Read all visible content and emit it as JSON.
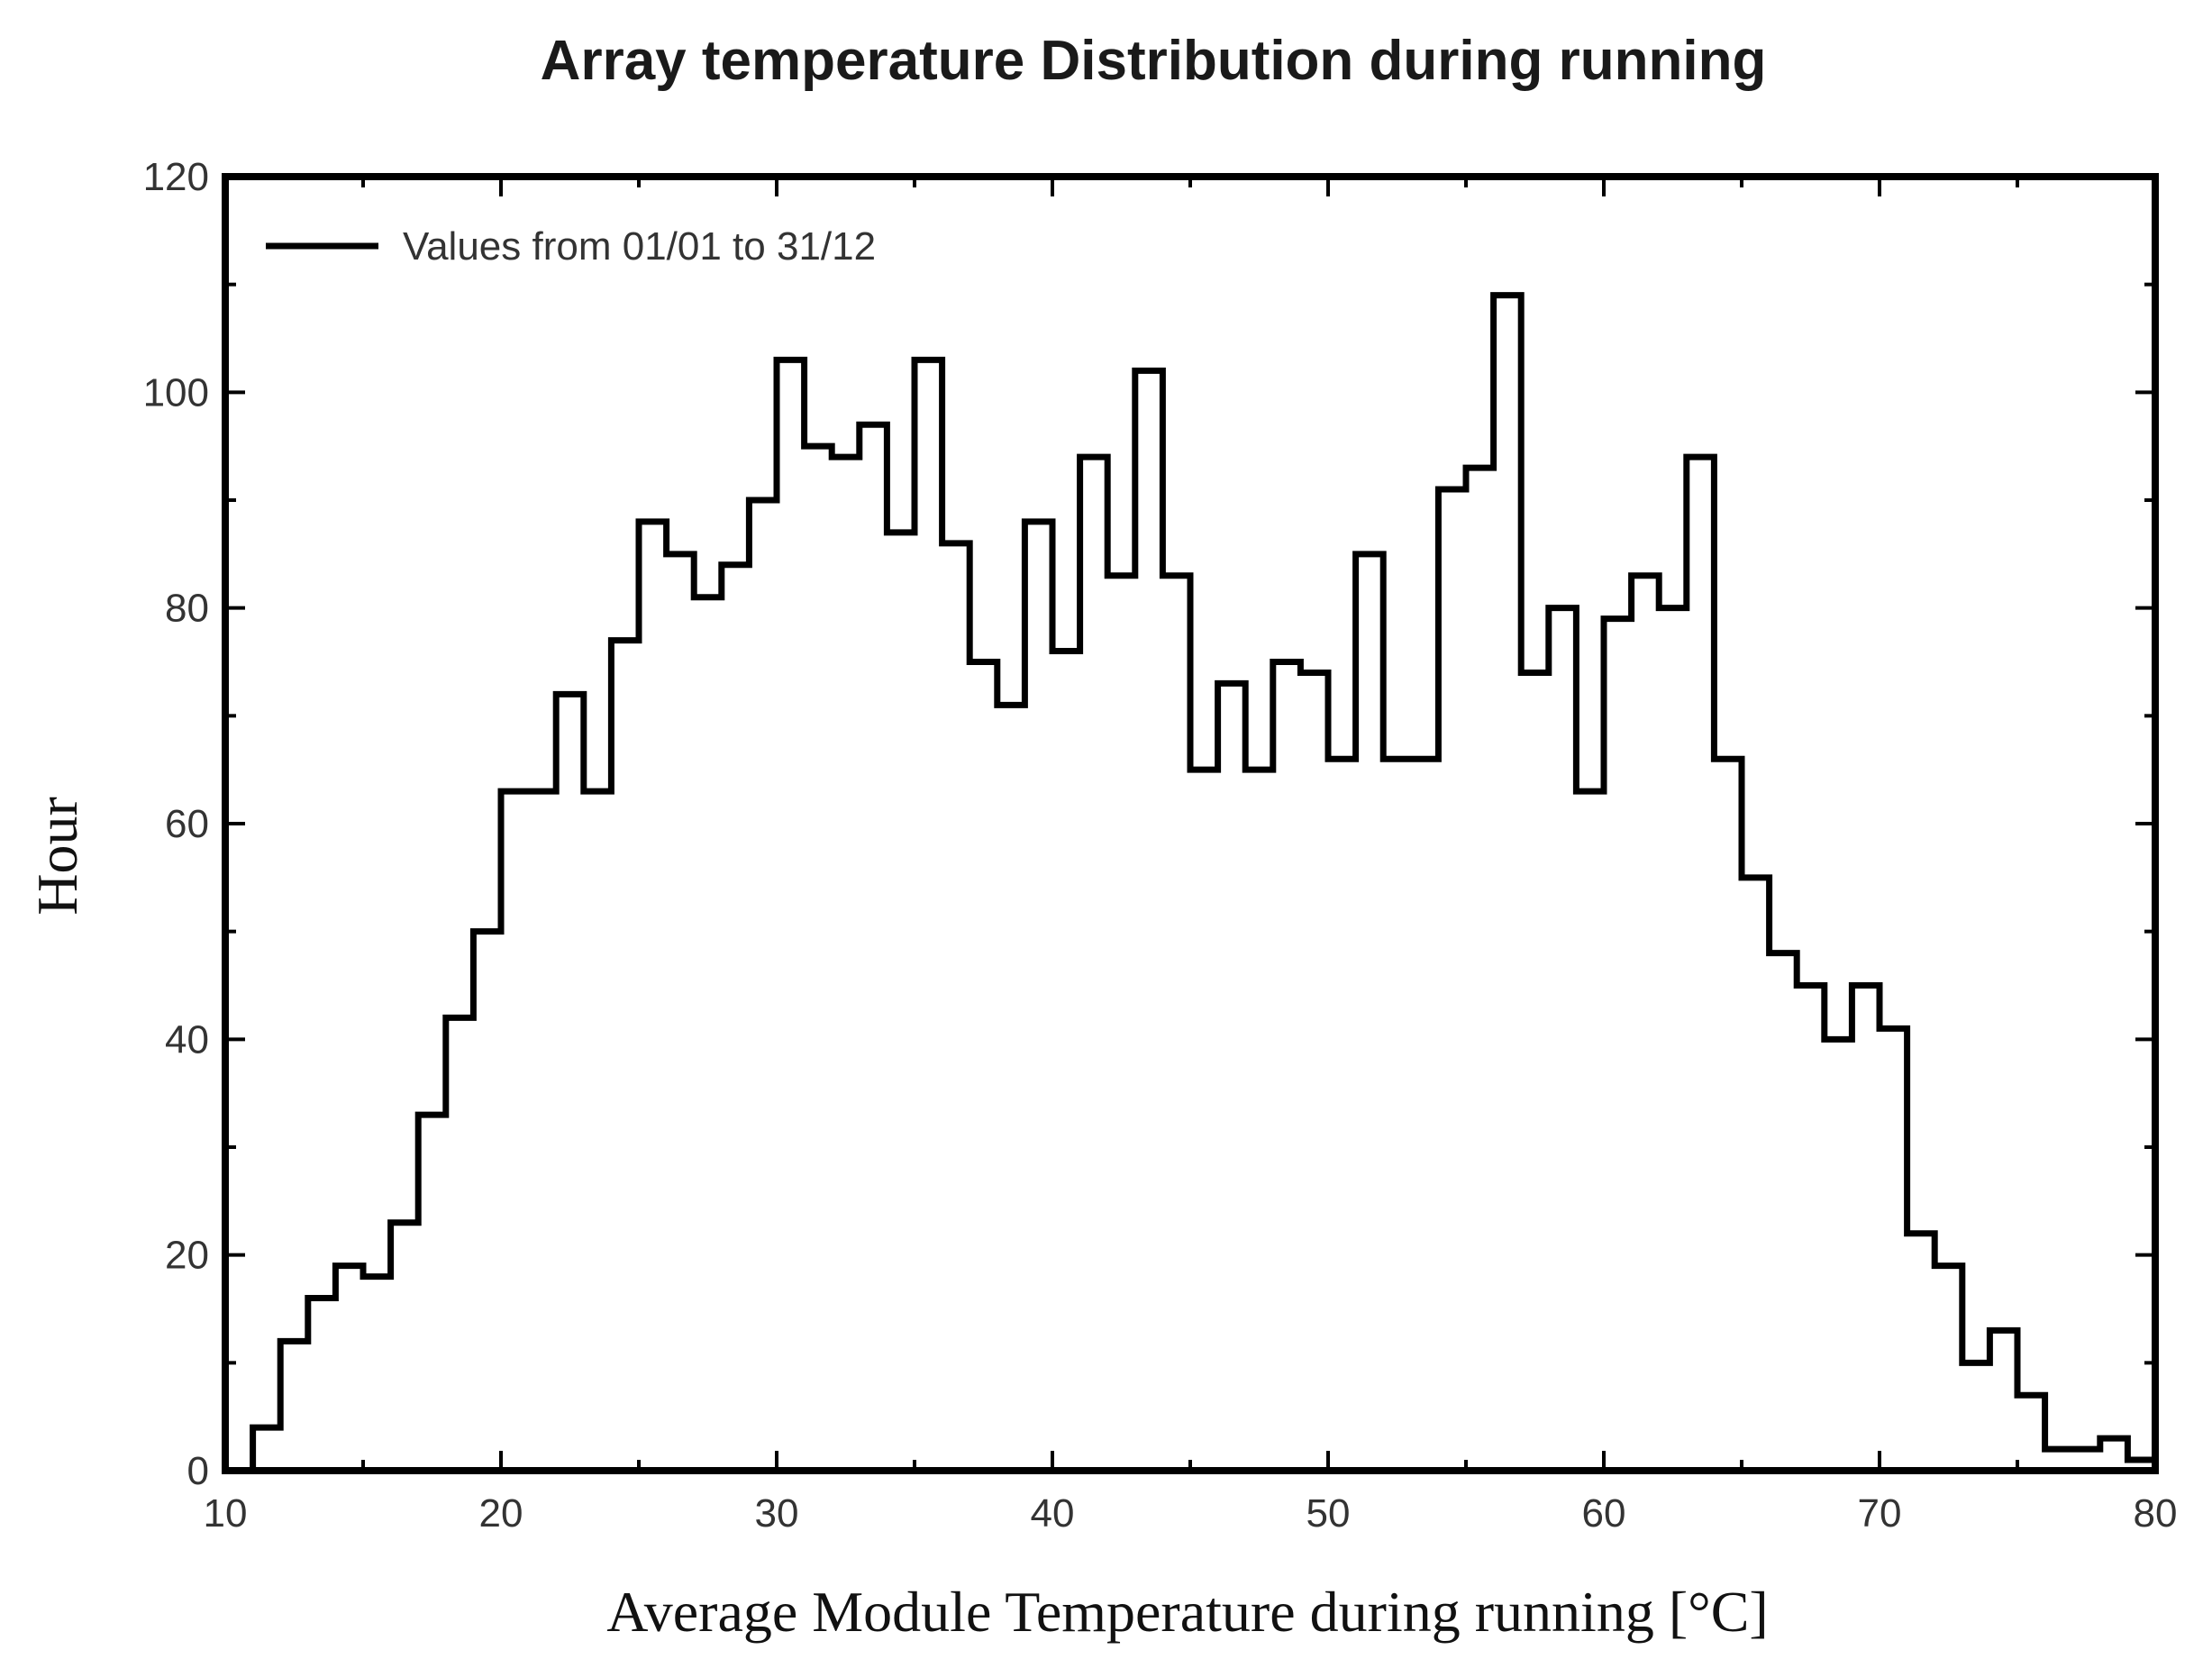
{
  "chart_data": {
    "type": "histogram",
    "title": "Array temperature Distribution during running",
    "xlabel": "Average Module Temperature during running [°C]",
    "ylabel": "Hour",
    "xlim": [
      10,
      80
    ],
    "ylim": [
      0,
      120
    ],
    "xticks": [
      10,
      20,
      30,
      40,
      50,
      60,
      70,
      80
    ],
    "yticks": [
      0,
      20,
      40,
      60,
      80,
      100,
      120
    ],
    "bin_width": 1,
    "legend": {
      "label": "Values from 01/01 to 31/12",
      "placement": "top-left"
    },
    "colors": {
      "line": "#000000",
      "frame": "#000000",
      "background": "#ffffff"
    },
    "series": [
      {
        "name": "Values from 01/01 to 31/12",
        "bin_edges_start": [
          11,
          12,
          13,
          14,
          15,
          16,
          17,
          18,
          19,
          20,
          21,
          22,
          23,
          24,
          25,
          26,
          27,
          28,
          29,
          30,
          31,
          32,
          33,
          34,
          35,
          36,
          37,
          38,
          39,
          40,
          41,
          42,
          43,
          44,
          45,
          46,
          47,
          48,
          49,
          50,
          51,
          52,
          53,
          54,
          55,
          56,
          57,
          58,
          59,
          60,
          61,
          62,
          63,
          64,
          65,
          66,
          67,
          68,
          69,
          70,
          71,
          72,
          73,
          74,
          75,
          76,
          77,
          78,
          79
        ],
        "values": [
          4,
          12,
          16,
          19,
          18,
          23,
          33,
          42,
          50,
          63,
          63,
          72,
          63,
          77,
          88,
          85,
          81,
          84,
          90,
          103,
          95,
          94,
          97,
          87,
          103,
          86,
          75,
          71,
          88,
          76,
          94,
          83,
          102,
          83,
          65,
          73,
          65,
          75,
          74,
          66,
          85,
          66,
          66,
          91,
          93,
          109,
          74,
          80,
          63,
          79,
          83,
          80,
          94,
          66,
          55,
          48,
          45,
          40,
          45,
          41,
          22,
          19,
          10,
          13,
          7,
          2,
          2,
          3,
          1
        ]
      }
    ]
  }
}
